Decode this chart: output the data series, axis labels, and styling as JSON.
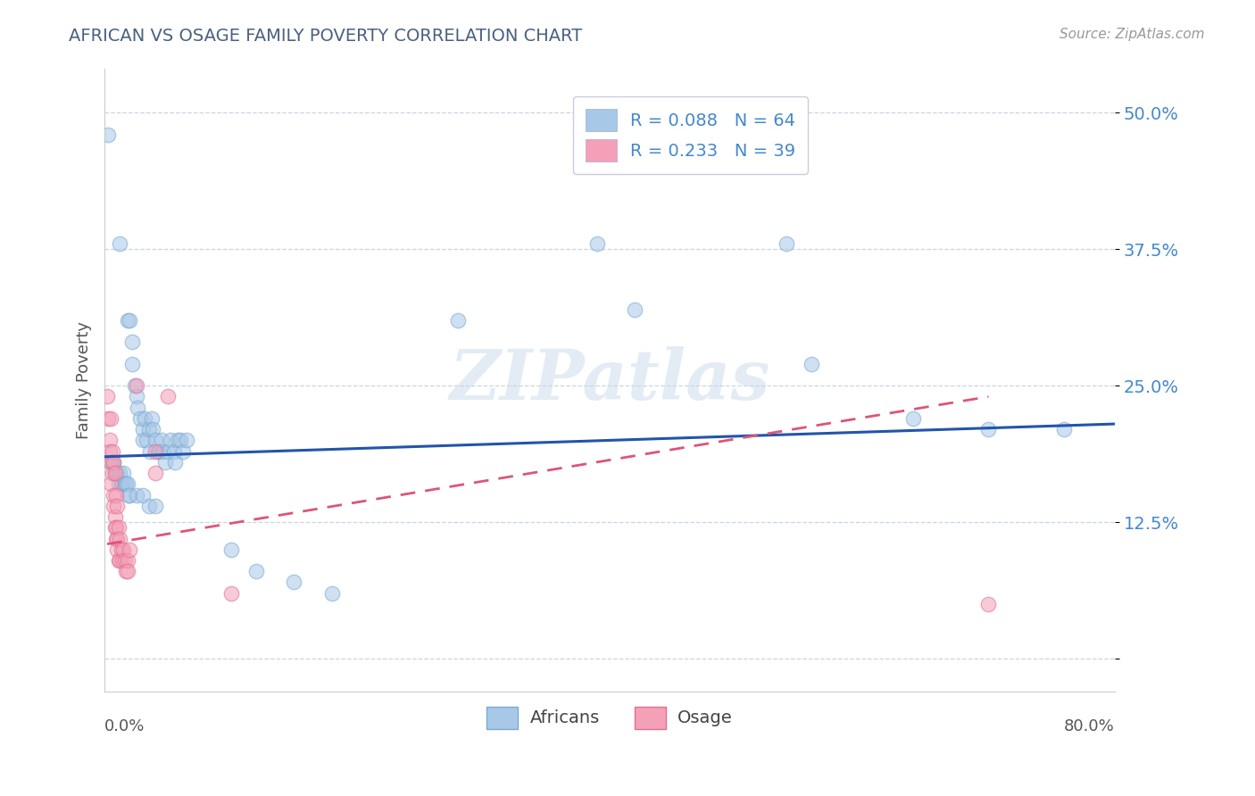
{
  "title": "AFRICAN VS OSAGE FAMILY POVERTY CORRELATION CHART",
  "source": "Source: ZipAtlas.com",
  "ylabel": "Family Poverty",
  "yticks": [
    0.0,
    0.125,
    0.25,
    0.375,
    0.5
  ],
  "ytick_labels": [
    "",
    "12.5%",
    "25.0%",
    "37.5%",
    "50.0%"
  ],
  "xlim": [
    0.0,
    0.8
  ],
  "ylim": [
    -0.03,
    0.54
  ],
  "africans_color": "#a8c8e8",
  "africans_edge_color": "#7aaad0",
  "osage_color": "#f4a0b8",
  "osage_edge_color": "#e07090",
  "africans_line_color": "#2255aa",
  "osage_line_color": "#dd5577",
  "watermark_text": "ZIPatlas",
  "legend_patch_african": "#a8c8e8",
  "legend_patch_osage": "#f4a0b8",
  "africans_scatter": [
    [
      0.003,
      0.48
    ],
    [
      0.012,
      0.38
    ],
    [
      0.018,
      0.31
    ],
    [
      0.02,
      0.31
    ],
    [
      0.022,
      0.29
    ],
    [
      0.022,
      0.27
    ],
    [
      0.024,
      0.25
    ],
    [
      0.025,
      0.24
    ],
    [
      0.026,
      0.23
    ],
    [
      0.028,
      0.22
    ],
    [
      0.03,
      0.21
    ],
    [
      0.03,
      0.2
    ],
    [
      0.032,
      0.22
    ],
    [
      0.033,
      0.2
    ],
    [
      0.035,
      0.21
    ],
    [
      0.036,
      0.19
    ],
    [
      0.037,
      0.22
    ],
    [
      0.038,
      0.21
    ],
    [
      0.04,
      0.2
    ],
    [
      0.042,
      0.19
    ],
    [
      0.043,
      0.19
    ],
    [
      0.045,
      0.2
    ],
    [
      0.046,
      0.19
    ],
    [
      0.048,
      0.18
    ],
    [
      0.05,
      0.19
    ],
    [
      0.052,
      0.2
    ],
    [
      0.055,
      0.19
    ],
    [
      0.056,
      0.18
    ],
    [
      0.058,
      0.2
    ],
    [
      0.06,
      0.2
    ],
    [
      0.062,
      0.19
    ],
    [
      0.065,
      0.2
    ],
    [
      0.005,
      0.18
    ],
    [
      0.006,
      0.18
    ],
    [
      0.007,
      0.18
    ],
    [
      0.008,
      0.17
    ],
    [
      0.009,
      0.17
    ],
    [
      0.01,
      0.17
    ],
    [
      0.011,
      0.16
    ],
    [
      0.012,
      0.17
    ],
    [
      0.013,
      0.16
    ],
    [
      0.014,
      0.16
    ],
    [
      0.015,
      0.17
    ],
    [
      0.016,
      0.16
    ],
    [
      0.017,
      0.16
    ],
    [
      0.018,
      0.16
    ],
    [
      0.019,
      0.15
    ],
    [
      0.02,
      0.15
    ],
    [
      0.025,
      0.15
    ],
    [
      0.03,
      0.15
    ],
    [
      0.035,
      0.14
    ],
    [
      0.04,
      0.14
    ],
    [
      0.1,
      0.1
    ],
    [
      0.12,
      0.08
    ],
    [
      0.15,
      0.07
    ],
    [
      0.18,
      0.06
    ],
    [
      0.39,
      0.38
    ],
    [
      0.42,
      0.32
    ],
    [
      0.28,
      0.31
    ],
    [
      0.54,
      0.38
    ],
    [
      0.56,
      0.27
    ],
    [
      0.64,
      0.22
    ],
    [
      0.7,
      0.21
    ],
    [
      0.76,
      0.21
    ]
  ],
  "osage_scatter": [
    [
      0.002,
      0.24
    ],
    [
      0.003,
      0.22
    ],
    [
      0.004,
      0.2
    ],
    [
      0.004,
      0.19
    ],
    [
      0.005,
      0.22
    ],
    [
      0.005,
      0.18
    ],
    [
      0.005,
      0.16
    ],
    [
      0.006,
      0.19
    ],
    [
      0.006,
      0.17
    ],
    [
      0.007,
      0.18
    ],
    [
      0.007,
      0.15
    ],
    [
      0.007,
      0.14
    ],
    [
      0.008,
      0.17
    ],
    [
      0.008,
      0.13
    ],
    [
      0.008,
      0.12
    ],
    [
      0.009,
      0.15
    ],
    [
      0.009,
      0.12
    ],
    [
      0.009,
      0.11
    ],
    [
      0.01,
      0.14
    ],
    [
      0.01,
      0.11
    ],
    [
      0.01,
      0.1
    ],
    [
      0.011,
      0.12
    ],
    [
      0.011,
      0.09
    ],
    [
      0.012,
      0.11
    ],
    [
      0.012,
      0.09
    ],
    [
      0.013,
      0.1
    ],
    [
      0.014,
      0.09
    ],
    [
      0.015,
      0.1
    ],
    [
      0.016,
      0.09
    ],
    [
      0.017,
      0.08
    ],
    [
      0.018,
      0.09
    ],
    [
      0.018,
      0.08
    ],
    [
      0.02,
      0.1
    ],
    [
      0.025,
      0.25
    ],
    [
      0.04,
      0.19
    ],
    [
      0.04,
      0.17
    ],
    [
      0.05,
      0.24
    ],
    [
      0.1,
      0.06
    ],
    [
      0.7,
      0.05
    ]
  ],
  "africans_line": {
    "x0": 0.0,
    "x1": 0.8,
    "y0": 0.185,
    "y1": 0.215
  },
  "osage_line": {
    "x0": 0.002,
    "x1": 0.7,
    "y0": 0.105,
    "y1": 0.24
  }
}
